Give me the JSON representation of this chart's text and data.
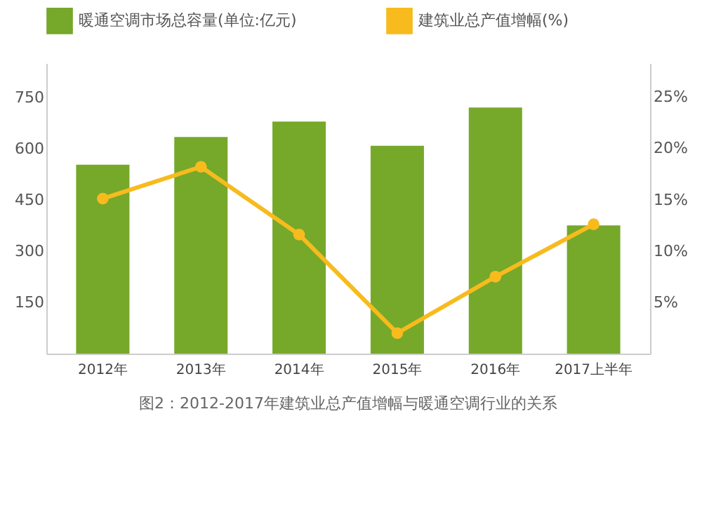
{
  "chart_data": {
    "type": "bar",
    "categories": [
      "2012年",
      "2013年",
      "2014年",
      "2015年",
      "2016年",
      "2017上半年"
    ],
    "series": [
      {
        "name": "暖通空调市场总容量(单位:亿元)",
        "color": "#76a82a",
        "values": [
          553,
          634,
          679,
          608,
          720,
          375
        ]
      },
      {
        "name": "建筑业总产值增幅(%)",
        "type": "line",
        "axis": "y2",
        "color": "#f7bb1e",
        "values": [
          15.1,
          18.2,
          11.6,
          2.0,
          7.5,
          12.6
        ]
      }
    ],
    "ylim": [
      0,
      850
    ],
    "yticks": [
      150,
      300,
      450,
      600,
      750
    ],
    "y2lim": [
      0,
      28.3
    ],
    "y2ticks": [
      {
        "value": 5,
        "label": "5%"
      },
      {
        "value": 10,
        "label": "10%"
      },
      {
        "value": 15,
        "label": "15%"
      },
      {
        "value": 20,
        "label": "20%"
      },
      {
        "value": 25,
        "label": "25%"
      }
    ],
    "marker": "circle",
    "line_style": "solid",
    "grid": false,
    "legend": "top",
    "annotations": [
      "图2：2012-2017年建筑业总产值增幅与暖通空调行业的关系"
    ]
  }
}
